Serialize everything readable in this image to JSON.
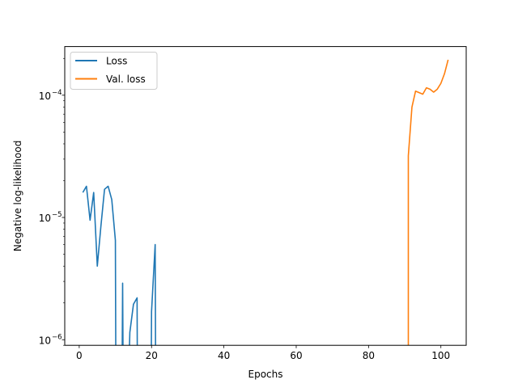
{
  "chart_data": {
    "type": "line",
    "xlabel": "Epochs",
    "ylabel": "Negative log-likelihood",
    "xlim": [
      -4,
      107
    ],
    "ylim": [
      9e-07,
      0.00025
    ],
    "yscale": "log",
    "grid": false,
    "legend_position": "top-left",
    "x_ticks": [
      0,
      20,
      40,
      60,
      80,
      100
    ],
    "x_tick_labels": [
      "0",
      "20",
      "40",
      "60",
      "80",
      "100"
    ],
    "y_ticks": [
      1e-06,
      1e-05,
      0.0001
    ],
    "y_tick_labels": [
      "10",
      "10",
      "10"
    ],
    "y_tick_exponents": [
      "−6",
      "−5",
      "−4"
    ],
    "series": [
      {
        "name": "Loss",
        "color": "#1f77b4",
        "segments": [
          [
            [
              1,
              1.6e-05
            ],
            [
              2,
              1.8e-05
            ],
            [
              3,
              9.5e-06
            ],
            [
              4,
              1.6e-05
            ],
            [
              5,
              4e-06
            ],
            [
              6,
              8.5e-06
            ],
            [
              7,
              1.7e-05
            ],
            [
              8,
              1.8e-05
            ],
            [
              9,
              1.4e-05
            ],
            [
              10,
              6.5e-06
            ],
            [
              10.1,
              9e-07
            ]
          ],
          [
            [
              11.9,
              9e-07
            ],
            [
              12,
              2.9e-06
            ],
            [
              12.1,
              9e-07
            ]
          ],
          [
            [
              13.9,
              9e-07
            ],
            [
              14,
              1.15e-06
            ],
            [
              15,
              1.95e-06
            ],
            [
              16,
              2.2e-06
            ],
            [
              16.05,
              9e-07
            ]
          ],
          [
            [
              19.95,
              9e-07
            ],
            [
              20,
              1.7e-06
            ],
            [
              21,
              6e-06
            ],
            [
              21.1,
              9e-07
            ]
          ]
        ]
      },
      {
        "name": "Val. loss",
        "color": "#ff7f0e",
        "segments": [
          [
            [
              91,
              9e-07
            ],
            [
              91,
              3.2e-05
            ],
            [
              92,
              8e-05
            ],
            [
              93,
              0.000108
            ],
            [
              94,
              0.000105
            ],
            [
              95,
              0.000102
            ],
            [
              96,
              0.000115
            ],
            [
              97,
              0.000112
            ],
            [
              98,
              0.000106
            ],
            [
              99,
              0.000112
            ],
            [
              100,
              0.000125
            ],
            [
              101,
              0.00015
            ],
            [
              102,
              0.000195
            ]
          ]
        ]
      }
    ]
  }
}
